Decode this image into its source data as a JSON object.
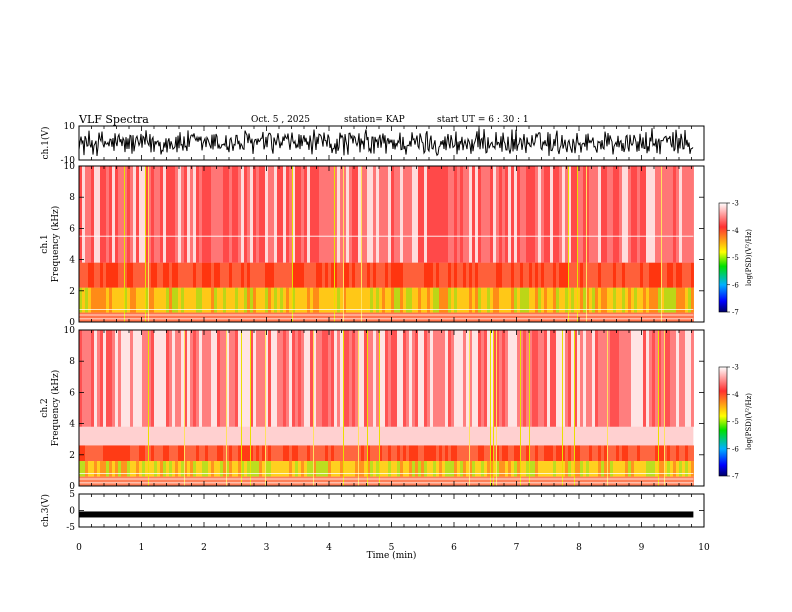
{
  "header": {
    "title": "VLF Spectra",
    "date": "Oct. 5 , 2025",
    "station": "station= KAP",
    "start_ut": "start UT = 6 : 30 : 1"
  },
  "chart_data": [
    {
      "type": "line",
      "panel": "ch1-waveform",
      "ylabel": "ch.1(V)",
      "ylim": [
        -10,
        10
      ],
      "yticks": [
        "10",
        "-10"
      ],
      "xlim": [
        0,
        10
      ],
      "data_end_min": 9.83
    },
    {
      "type": "heatmap",
      "panel": "ch1-spectrogram",
      "ylabel_line1": "ch.1",
      "ylabel_line2": "Frequency (kHz)",
      "ylim": [
        0,
        10
      ],
      "yticks": [
        "0",
        "2",
        "4",
        "6",
        "8",
        "10"
      ],
      "xlim": [
        0,
        10
      ],
      "colorbar": {
        "label": "log(PSD)(V²/Hz)",
        "range": [
          -7,
          -3
        ],
        "ticks": [
          "-3",
          "-4",
          "-5",
          "-6",
          "-7"
        ]
      }
    },
    {
      "type": "heatmap",
      "panel": "ch2-spectrogram",
      "ylabel_line1": "ch.2",
      "ylabel_line2": "Frequency (kHz)",
      "ylim": [
        0,
        10
      ],
      "yticks": [
        "0",
        "2",
        "4",
        "6",
        "8",
        "10"
      ],
      "xlim": [
        0,
        10
      ],
      "colorbar": {
        "label": "log(PSD)(V²/Hz)",
        "range": [
          -7,
          -3
        ],
        "ticks": [
          "-3",
          "-4",
          "-5",
          "-6",
          "-7"
        ]
      }
    },
    {
      "type": "line",
      "panel": "ch3-waveform",
      "ylabel": "ch.3(V)",
      "ylim": [
        -5,
        5
      ],
      "yticks": [
        "5",
        "0",
        "-5"
      ],
      "approx_level": -1.2,
      "xlim": [
        0,
        10
      ],
      "xlabel": "Time (min)",
      "xticks": [
        "0",
        "1",
        "2",
        "3",
        "4",
        "5",
        "6",
        "7",
        "8",
        "9",
        "10"
      ]
    }
  ]
}
